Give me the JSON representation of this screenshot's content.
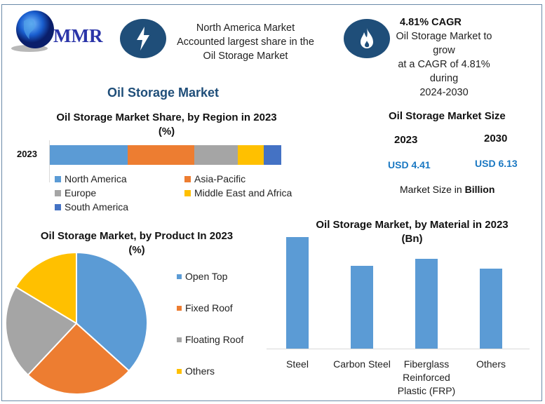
{
  "header": {
    "logo_text": "MMR",
    "highlight1": [
      "North America Market",
      "Accounted largest share in the",
      "Oil Storage Market"
    ],
    "cagr_title": "4.81% CAGR",
    "highlight2": [
      "Oil Storage Market to grow",
      "at a CAGR of 4.81% during",
      "2024-2030"
    ]
  },
  "main_title": "Oil Storage Market",
  "market_size": {
    "title": "Oil Storage Market Size",
    "year1": "2023",
    "year2": "2030",
    "value1": "USD 4.41",
    "value2": "USD 6.13",
    "note_prefix": "Market Size in ",
    "note_unit": "Billion"
  },
  "colors": {
    "blue": "#5b9bd5",
    "orange": "#ed7d31",
    "gray": "#a5a5a5",
    "yellow": "#ffc000",
    "darkblue": "#4472c4"
  },
  "chart_data": [
    {
      "type": "bar",
      "orientation": "horizontal-stacked",
      "title": "Oil Storage Market Share, by Region in 2023",
      "subtitle": "(%)",
      "categories": [
        "2023"
      ],
      "series": [
        {
          "name": "North America",
          "values": [
            33.6
          ],
          "color": "#5b9bd5"
        },
        {
          "name": "Asia-Pacific",
          "values": [
            28.8
          ],
          "color": "#ed7d31"
        },
        {
          "name": "Europe",
          "values": [
            18.8
          ],
          "color": "#a5a5a5"
        },
        {
          "name": "Middle East and Africa",
          "values": [
            11.2
          ],
          "color": "#ffc000"
        },
        {
          "name": "South America",
          "values": [
            7.6
          ],
          "color": "#4472c4"
        }
      ],
      "legend": "bottom"
    },
    {
      "type": "pie",
      "title": "Oil Storage Market, by Product In 2023",
      "subtitle": "(%)",
      "slices": [
        {
          "label": "Open Top",
          "value": 36.7,
          "color": "#5b9bd5"
        },
        {
          "label": "Fixed Roof",
          "value": 25.3,
          "color": "#ed7d31"
        },
        {
          "label": "Floating Roof",
          "value": 21.6,
          "color": "#a5a5a5"
        },
        {
          "label": "Others",
          "value": 16.4,
          "color": "#ffc000"
        }
      ],
      "legend": "right"
    },
    {
      "type": "bar",
      "title": "Oil Storage Market, by Material in 2023",
      "subtitle": "(Bn)",
      "categories": [
        "Steel",
        "Carbon Steel",
        "Fiberglass Reinforced Plastic (FRP)",
        "Others"
      ],
      "category_lines": [
        [
          "Steel"
        ],
        [
          "Carbon Steel"
        ],
        [
          "Fiberglass",
          "Reinforced",
          "Plastic (FRP)"
        ],
        [
          "Others"
        ]
      ],
      "values": [
        1.35,
        1.0,
        1.09,
        0.97
      ],
      "ylim": [
        0,
        1.35
      ],
      "color": "#5b9bd5",
      "grid": false
    }
  ]
}
